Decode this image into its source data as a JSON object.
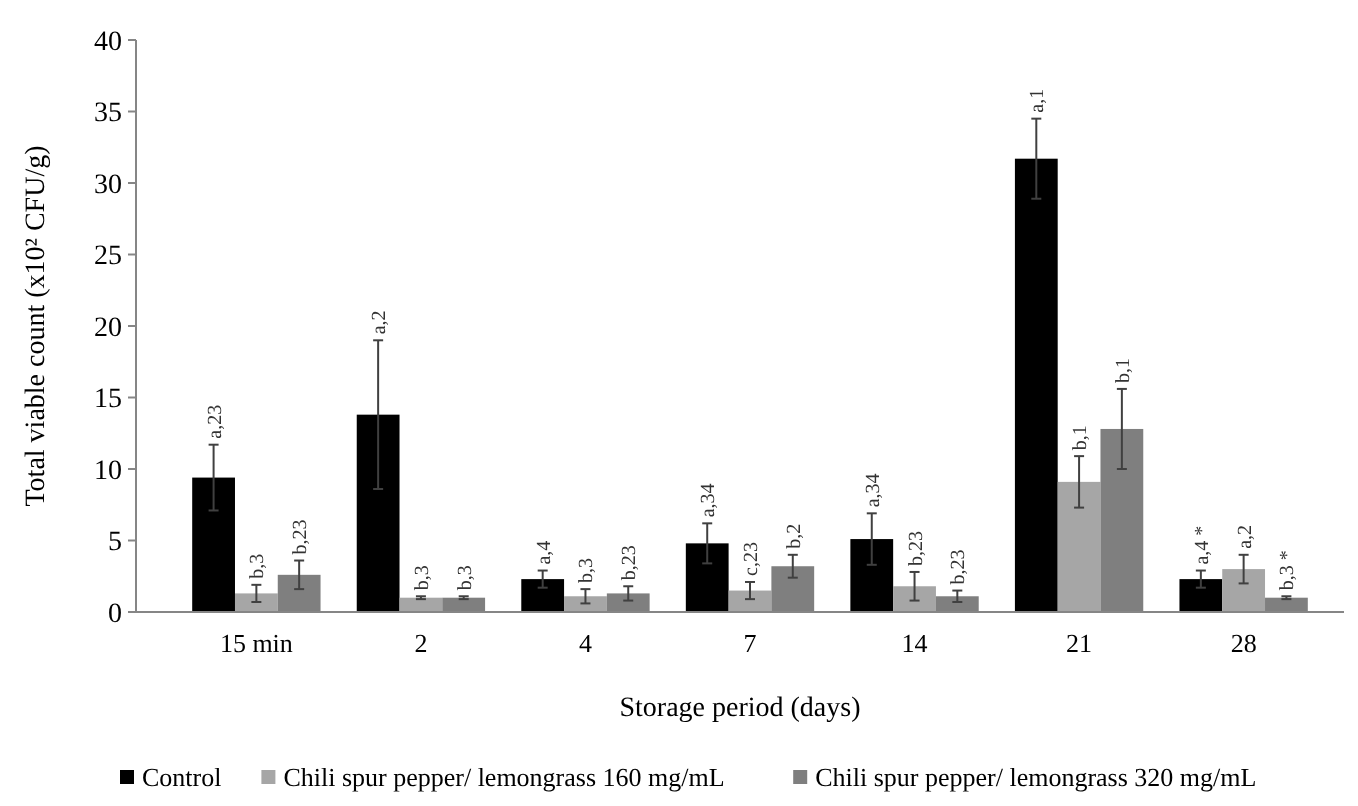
{
  "chart_data": {
    "type": "bar",
    "xlabel": "Storage period (days)",
    "ylabel": "Total viable count (x10² CFU/g)",
    "categories": [
      "15 min",
      "2",
      "4",
      "7",
      "14",
      "21",
      "28"
    ],
    "series": [
      {
        "name": "Control",
        "color": "#000000",
        "values": [
          9.4,
          13.8,
          2.3,
          4.8,
          5.1,
          31.7,
          2.3
        ],
        "errors": [
          2.3,
          5.2,
          0.6,
          1.4,
          1.8,
          2.8,
          0.6
        ]
      },
      {
        "name": "Chili spur pepper/ lemongrass 160 mg/mL",
        "color": "#a6a6a6",
        "values": [
          1.3,
          1.0,
          1.1,
          1.5,
          1.8,
          9.1,
          3.0
        ],
        "errors": [
          0.6,
          0.1,
          0.5,
          0.6,
          1.0,
          1.8,
          1.0
        ]
      },
      {
        "name": "Chili spur pepper/ lemongrass 320 mg/mL",
        "color": "#7f7f7f",
        "values": [
          2.6,
          1.0,
          1.3,
          3.2,
          1.1,
          12.8,
          1.0
        ],
        "errors": [
          1.0,
          0.1,
          0.5,
          0.8,
          0.4,
          2.8,
          0.1
        ]
      }
    ],
    "annotations": [
      "a,23",
      "a,2",
      "a,4",
      "a,34",
      "a,34",
      "a,1",
      "a,4 *",
      "b,3",
      "b,3",
      "b,3",
      "c,23",
      "b,23",
      "b,1",
      "a,2",
      "b,23",
      "b,3",
      "b,23",
      "b,2",
      "b,23",
      "b,1",
      "b,3 *"
    ],
    "ylim": [
      0,
      40
    ],
    "yticks": [
      0,
      5,
      10,
      15,
      20,
      25,
      30,
      35,
      40
    ],
    "grid": false,
    "legend": "bottom"
  }
}
